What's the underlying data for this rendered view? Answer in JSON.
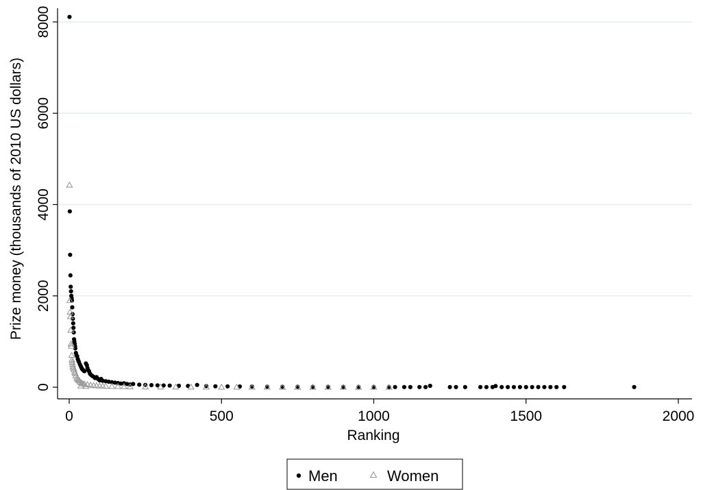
{
  "chart_data": {
    "type": "scatter",
    "title": "",
    "xlabel": "Ranking",
    "ylabel": "Prize money (thousands of 2010 US dollars)",
    "xlim": [
      0,
      2000
    ],
    "ylim": [
      0,
      8200
    ],
    "xticks": [
      0,
      500,
      1000,
      1500,
      2000
    ],
    "yticks": [
      0,
      2000,
      4000,
      6000,
      8000
    ],
    "xtick_labels": [
      "0",
      "500",
      "1000",
      "1500",
      "2000"
    ],
    "ytick_labels": [
      "0",
      "2000",
      "4000",
      "6000",
      "8000"
    ],
    "grid": "horizontal",
    "legend": {
      "position": "bottom",
      "entries": [
        "Men",
        "Women"
      ]
    },
    "colors": {
      "men": "#000000",
      "women": "#999999",
      "grid": "#e4ecee"
    },
    "series": [
      {
        "name": "Men",
        "marker": "circle",
        "x": [
          1,
          2,
          3,
          4,
          5,
          6,
          7,
          8,
          9,
          10,
          11,
          12,
          13,
          14,
          15,
          16,
          17,
          18,
          19,
          20,
          22,
          24,
          26,
          28,
          30,
          32,
          35,
          38,
          40,
          42,
          45,
          48,
          50,
          55,
          58,
          60,
          62,
          65,
          68,
          70,
          75,
          80,
          85,
          90,
          95,
          100,
          105,
          110,
          120,
          130,
          140,
          150,
          160,
          170,
          180,
          190,
          200,
          210,
          230,
          250,
          270,
          290,
          310,
          330,
          360,
          390,
          420,
          450,
          480,
          520,
          560,
          600,
          650,
          700,
          750,
          800,
          850,
          900,
          950,
          1000,
          1050,
          1070,
          1100,
          1120,
          1150,
          1170,
          1185,
          1250,
          1270,
          1300,
          1350,
          1370,
          1390,
          1400,
          1420,
          1440,
          1460,
          1480,
          1500,
          1520,
          1540,
          1560,
          1580,
          1600,
          1625,
          1855
        ],
        "y": [
          8110,
          3850,
          2900,
          2450,
          2200,
          2100,
          2000,
          1950,
          1900,
          1750,
          1600,
          1500,
          1400,
          1300,
          1200,
          1050,
          1000,
          950,
          900,
          850,
          750,
          700,
          680,
          620,
          580,
          550,
          500,
          460,
          430,
          400,
          380,
          360,
          350,
          520,
          480,
          420,
          380,
          350,
          300,
          280,
          250,
          230,
          200,
          220,
          180,
          150,
          180,
          140,
          130,
          120,
          110,
          100,
          90,
          80,
          85,
          70,
          60,
          70,
          55,
          50,
          45,
          40,
          38,
          35,
          30,
          28,
          50,
          25,
          20,
          18,
          15,
          15,
          12,
          10,
          10,
          8,
          8,
          6,
          5,
          5,
          4,
          3,
          3,
          2,
          2,
          2,
          30,
          2,
          2,
          2,
          2,
          2,
          2,
          25,
          2,
          2,
          2,
          2,
          2,
          2,
          2,
          2,
          2,
          2,
          2,
          3
        ]
      },
      {
        "name": "Women",
        "marker": "triangle",
        "x": [
          1,
          2,
          3,
          4,
          5,
          6,
          7,
          8,
          9,
          10,
          11,
          12,
          14,
          16,
          18,
          20,
          22,
          25,
          28,
          30,
          33,
          35,
          38,
          40,
          45,
          50,
          55,
          60,
          70,
          80,
          90,
          100,
          110,
          120,
          140,
          160,
          180,
          200,
          250,
          300,
          350,
          400,
          450,
          500,
          550,
          600,
          650,
          700,
          750,
          800,
          850,
          900,
          950,
          1000,
          1050
        ],
        "y": [
          4430,
          1900,
          1650,
          1550,
          1250,
          950,
          900,
          700,
          600,
          550,
          500,
          450,
          420,
          380,
          330,
          300,
          250,
          200,
          180,
          160,
          150,
          120,
          30,
          100,
          80,
          70,
          20,
          60,
          50,
          40,
          35,
          30,
          28,
          25,
          20,
          18,
          15,
          12,
          10,
          8,
          7,
          6,
          5,
          4,
          4,
          3,
          3,
          2,
          2,
          2,
          2,
          1,
          1,
          1,
          1
        ]
      }
    ]
  }
}
